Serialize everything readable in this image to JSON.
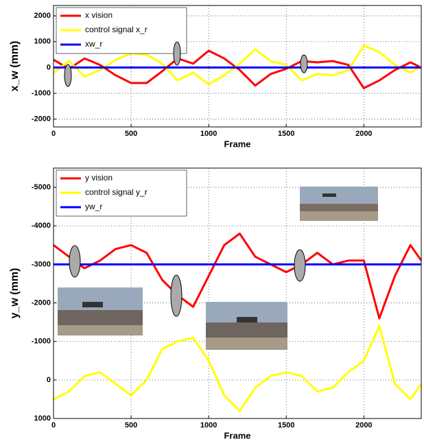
{
  "chart_data": [
    {
      "type": "line",
      "xlabel": "Frame",
      "ylabel": "x_w (mm)",
      "x": [
        0,
        100,
        200,
        300,
        400,
        500,
        600,
        700,
        800,
        900,
        1000,
        1100,
        1200,
        1300,
        1400,
        1500,
        1600,
        1700,
        1800,
        1900,
        2000,
        2100,
        2200,
        2300,
        2370
      ],
      "xlim": [
        0,
        2370
      ],
      "xticks": [
        0,
        500,
        1000,
        1500,
        2000
      ],
      "ylim": [
        -2300,
        2400
      ],
      "yticks": [
        -2000,
        -1000,
        0,
        1000,
        2000
      ],
      "y_reversed": false,
      "grid": true,
      "legend": "upper left",
      "series": [
        {
          "name": "x vision",
          "color": "#ff0000",
          "values": [
            300,
            -50,
            350,
            100,
            -300,
            -600,
            -600,
            -150,
            350,
            150,
            650,
            350,
            -100,
            -700,
            -250,
            -50,
            250,
            200,
            250,
            100,
            -800,
            -500,
            -100,
            200,
            0
          ]
        },
        {
          "name": "control signal x_r",
          "color": "#ffff00",
          "values": [
            -200,
            250,
            -350,
            -100,
            300,
            550,
            500,
            150,
            -500,
            -200,
            -650,
            -300,
            150,
            700,
            250,
            100,
            -500,
            -250,
            -300,
            -100,
            850,
            600,
            100,
            -200,
            50
          ]
        },
        {
          "name": "xw_r",
          "color": "#0000ff",
          "values": [
            0,
            0,
            0,
            0,
            0,
            0,
            0,
            0,
            0,
            0,
            0,
            0,
            0,
            0,
            0,
            0,
            0,
            0,
            0,
            0,
            0,
            0,
            0,
            0,
            0
          ]
        }
      ]
    },
    {
      "type": "line",
      "xlabel": "Frame",
      "ylabel": "y_w (mm)",
      "x": [
        0,
        100,
        200,
        300,
        400,
        500,
        600,
        700,
        800,
        900,
        1000,
        1100,
        1200,
        1300,
        1400,
        1500,
        1600,
        1700,
        1800,
        1900,
        2000,
        2100,
        2200,
        2300,
        2370
      ],
      "xlim": [
        0,
        2370
      ],
      "xticks": [
        0,
        500,
        1000,
        1500,
        2000
      ],
      "ylim": [
        1000,
        -5500
      ],
      "yticks": [
        1000,
        0,
        -1000,
        -2000,
        -3000,
        -4000,
        -5000
      ],
      "y_reversed": true,
      "grid": true,
      "legend": "upper left",
      "series": [
        {
          "name": "y vision",
          "color": "#ff0000",
          "values": [
            -3500,
            -3200,
            -2900,
            -3100,
            -3400,
            -3500,
            -3300,
            -2600,
            -2200,
            -1900,
            -2700,
            -3500,
            -3800,
            -3200,
            -3000,
            -2800,
            -3000,
            -3300,
            -3000,
            -3100,
            -3100,
            -1600,
            -2700,
            -3500,
            -3100
          ]
        },
        {
          "name": "control signal y_r",
          "color": "#ffff00",
          "values": [
            500,
            300,
            -100,
            -200,
            100,
            400,
            0,
            -800,
            -1000,
            -1100,
            -500,
            400,
            800,
            200,
            -100,
            -200,
            -100,
            300,
            200,
            -200,
            -500,
            -1400,
            100,
            500,
            100
          ]
        },
        {
          "name": "yw_r",
          "color": "#0000ff",
          "values": [
            -3000,
            -3000,
            -3000,
            -3000,
            -3000,
            -3000,
            -3000,
            -3000,
            -3000,
            -3000,
            -3000,
            -3000,
            -3000,
            -3000,
            -3000,
            -3000,
            -3000,
            -3000,
            -3000,
            -3000,
            -3000,
            -3000,
            -3000,
            -3000,
            -3000
          ]
        }
      ]
    }
  ]
}
